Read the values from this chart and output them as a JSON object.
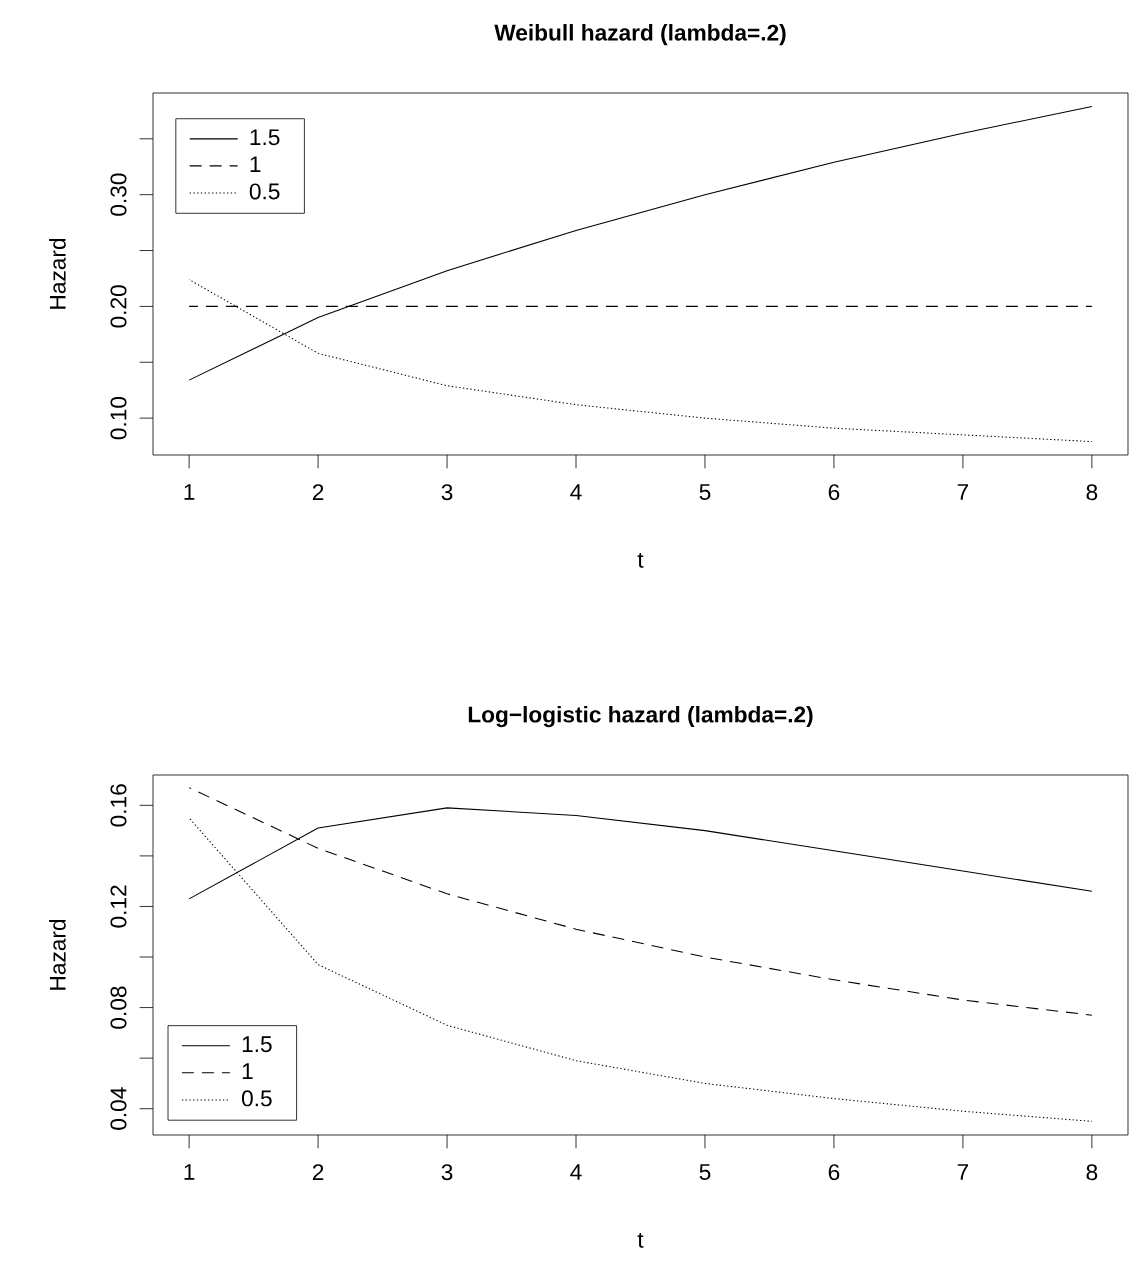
{
  "chart_data": [
    {
      "type": "line",
      "title": "Weibull hazard (lambda=.2)",
      "xlabel": "t",
      "ylabel": "Hazard",
      "x": [
        1,
        2,
        3,
        4,
        5,
        6,
        7,
        8
      ],
      "xlim": [
        0.72,
        8.28
      ],
      "xticks": [
        1,
        2,
        3,
        4,
        5,
        6,
        7,
        8
      ],
      "ylim": [
        0.067,
        0.391
      ],
      "yticks": [
        {
          "value": 0.1,
          "label": "0.10"
        },
        {
          "value": 0.15,
          "label": null
        },
        {
          "value": 0.2,
          "label": "0.20"
        },
        {
          "value": 0.25,
          "label": null
        },
        {
          "value": 0.3,
          "label": "0.30"
        },
        {
          "value": 0.35,
          "label": null
        }
      ],
      "legend": "top left",
      "series": [
        {
          "name": "1.5",
          "color": "#000000",
          "line_style": "solid",
          "values": [
            0.134,
            0.19,
            0.232,
            0.268,
            0.3,
            0.329,
            0.355,
            0.379
          ]
        },
        {
          "name": "1",
          "color": "#000000",
          "line_style": "dashed",
          "values": [
            0.2,
            0.2,
            0.2,
            0.2,
            0.2,
            0.2,
            0.2,
            0.2
          ]
        },
        {
          "name": "0.5",
          "color": "#000000",
          "line_style": "dotted",
          "values": [
            0.224,
            0.158,
            0.129,
            0.112,
            0.1,
            0.091,
            0.085,
            0.079
          ]
        }
      ]
    },
    {
      "type": "line",
      "title": "Log−logistic hazard (lambda=.2)",
      "xlabel": "t",
      "ylabel": "Hazard",
      "x": [
        1,
        2,
        3,
        4,
        5,
        6,
        7,
        8
      ],
      "xlim": [
        0.72,
        8.28
      ],
      "xticks": [
        1,
        2,
        3,
        4,
        5,
        6,
        7,
        8
      ],
      "ylim": [
        0.0296,
        0.172
      ],
      "yticks": [
        {
          "value": 0.04,
          "label": "0.04"
        },
        {
          "value": 0.06,
          "label": null
        },
        {
          "value": 0.08,
          "label": "0.08"
        },
        {
          "value": 0.1,
          "label": null
        },
        {
          "value": 0.12,
          "label": "0.12"
        },
        {
          "value": 0.14,
          "label": null
        },
        {
          "value": 0.16,
          "label": "0.16"
        }
      ],
      "legend": "bottom left",
      "series": [
        {
          "name": "1.5",
          "color": "#000000",
          "line_style": "solid",
          "values": [
            0.123,
            0.151,
            0.159,
            0.156,
            0.15,
            0.142,
            0.134,
            0.126
          ]
        },
        {
          "name": "1",
          "color": "#000000",
          "line_style": "dashed",
          "values": [
            0.167,
            0.143,
            0.125,
            0.111,
            0.1,
            0.091,
            0.083,
            0.077
          ]
        },
        {
          "name": "0.5",
          "color": "#000000",
          "line_style": "dotted",
          "values": [
            0.155,
            0.097,
            0.073,
            0.059,
            0.05,
            0.044,
            0.039,
            0.035
          ]
        }
      ]
    }
  ]
}
